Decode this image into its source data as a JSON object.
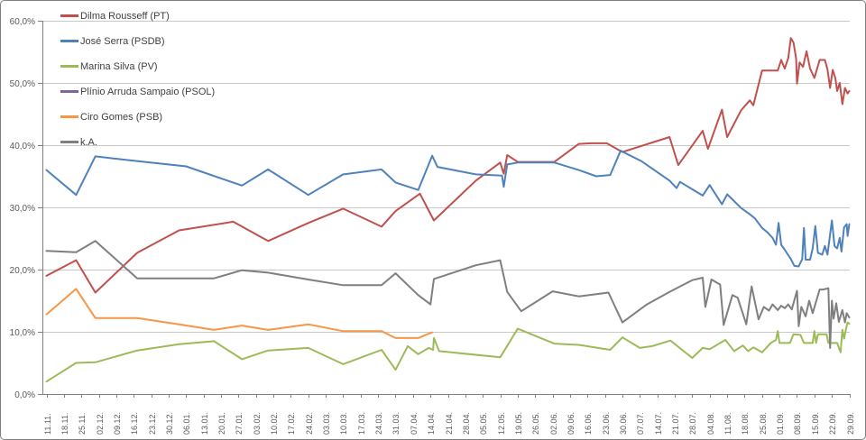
{
  "chart_data": {
    "type": "line",
    "title": "",
    "legend_position": "top-left",
    "grid": true,
    "x_axis": {
      "unit": "weekly date ticks (dd.mm.)",
      "tick_labels": [
        "11.11.",
        "18.11.",
        "25.11.",
        "02.12.",
        "09.12.",
        "16.12.",
        "23.12.",
        "30.12.",
        "06.01.",
        "13.01.",
        "20.01.",
        "27.01.",
        "03.02.",
        "10.02.",
        "17.02.",
        "24.02.",
        "03.03.",
        "10.03.",
        "17.03.",
        "24.03.",
        "31.03.",
        "07.04.",
        "14.04.",
        "21.04.",
        "28.04.",
        "05.05.",
        "12.05.",
        "19.05.",
        "26.05.",
        "02.06.",
        "09.06.",
        "16.06.",
        "23.06.",
        "30.06.",
        "07.07.",
        "14.07.",
        "21.07.",
        "28.07.",
        "04.08.",
        "11.08.",
        "18.08.",
        "25.08.",
        "01.09.",
        "08.09.",
        "15.09.",
        "22.09.",
        "29.09."
      ]
    },
    "y_axis": {
      "min": 0,
      "max": 60,
      "step": 10,
      "tick_labels": [
        "0,0%",
        "10,0%",
        "20,0%",
        "30,0%",
        "40,0%",
        "50,0%",
        "60,0%"
      ]
    },
    "x_scale_note": "series points are [x,y] with x in week units: 0 = tick '11.11.', 46 = tick '29.09.'; y in percent",
    "series": [
      {
        "name": "Dilma Rousseff (PT)",
        "color": "#C0504D",
        "points": [
          [
            0,
            19.0
          ],
          [
            1.7,
            21.5
          ],
          [
            2.8,
            16.3
          ],
          [
            5.2,
            22.7
          ],
          [
            7.6,
            26.3
          ],
          [
            10.7,
            27.7
          ],
          [
            12.7,
            24.6
          ],
          [
            15,
            27.5
          ],
          [
            17,
            29.8
          ],
          [
            19.2,
            26.9
          ],
          [
            20,
            29.4
          ],
          [
            21.4,
            32.2
          ],
          [
            22.2,
            27.9
          ],
          [
            24.6,
            34.3
          ],
          [
            26,
            37.2
          ],
          [
            26.2,
            35.4
          ],
          [
            26.4,
            38.4
          ],
          [
            27,
            37.3
          ],
          [
            29.1,
            37.3
          ],
          [
            30.5,
            40.2
          ],
          [
            31.2,
            40.3
          ],
          [
            32.1,
            40.3
          ],
          [
            33,
            38.9
          ],
          [
            35.7,
            41.3
          ],
          [
            36.2,
            36.8
          ],
          [
            37.6,
            42.3
          ],
          [
            37.9,
            39.4
          ],
          [
            38.7,
            45.7
          ],
          [
            39,
            41.3
          ],
          [
            39.8,
            45.6
          ],
          [
            40.3,
            47.2
          ],
          [
            40.5,
            46.4
          ],
          [
            41,
            52.0
          ],
          [
            41.9,
            52.0
          ],
          [
            42.1,
            53.7
          ],
          [
            42.3,
            52.3
          ],
          [
            42.5,
            54.0
          ],
          [
            42.65,
            57.2
          ],
          [
            42.8,
            56.5
          ],
          [
            42.95,
            54.0
          ],
          [
            43.0,
            49.9
          ],
          [
            43.15,
            53.3
          ],
          [
            43.35,
            52.6
          ],
          [
            43.55,
            55.1
          ],
          [
            43.75,
            52.3
          ],
          [
            44.0,
            50.8
          ],
          [
            44.3,
            53.7
          ],
          [
            44.6,
            53.7
          ],
          [
            44.75,
            52.2
          ],
          [
            44.9,
            49.2
          ],
          [
            45.05,
            52.1
          ],
          [
            45.2,
            50.8
          ],
          [
            45.3,
            48.7
          ],
          [
            45.45,
            50.0
          ],
          [
            45.6,
            46.6
          ],
          [
            45.75,
            49.2
          ],
          [
            45.9,
            48.3
          ],
          [
            46,
            48.7
          ]
        ]
      },
      {
        "name": "José Serra (PSDB)",
        "color": "#4F81BD",
        "points": [
          [
            0,
            36.0
          ],
          [
            1.7,
            32.0
          ],
          [
            2.8,
            38.2
          ],
          [
            5,
            37.5
          ],
          [
            8,
            36.6
          ],
          [
            11.2,
            33.5
          ],
          [
            12.7,
            36.1
          ],
          [
            15,
            32.0
          ],
          [
            17,
            35.3
          ],
          [
            19.2,
            36.1
          ],
          [
            20,
            34.0
          ],
          [
            21.3,
            32.8
          ],
          [
            22.1,
            38.3
          ],
          [
            22.4,
            36.5
          ],
          [
            24.6,
            35.3
          ],
          [
            26.1,
            35.1
          ],
          [
            26.2,
            33.3
          ],
          [
            26.4,
            36.9
          ],
          [
            27,
            37.2
          ],
          [
            29.1,
            37.2
          ],
          [
            30.5,
            36.0
          ],
          [
            31.5,
            35.0
          ],
          [
            32.3,
            35.2
          ],
          [
            32.9,
            39.1
          ],
          [
            34.1,
            37.4
          ],
          [
            35.7,
            34.3
          ],
          [
            36.1,
            33.1
          ],
          [
            36.3,
            34.1
          ],
          [
            37.6,
            31.9
          ],
          [
            38,
            33.6
          ],
          [
            38.7,
            30.5
          ],
          [
            39,
            32.1
          ],
          [
            39.8,
            29.9
          ],
          [
            40.3,
            28.9
          ],
          [
            40.6,
            28.2
          ],
          [
            41,
            26.7
          ],
          [
            41.3,
            26.0
          ],
          [
            41.6,
            25.1
          ],
          [
            41.8,
            24.0
          ],
          [
            41.95,
            27.5
          ],
          [
            42.1,
            24.0
          ],
          [
            42.25,
            23.4
          ],
          [
            42.65,
            21.7
          ],
          [
            42.85,
            20.6
          ],
          [
            43.1,
            20.5
          ],
          [
            43.3,
            21.7
          ],
          [
            43.4,
            26.7
          ],
          [
            43.5,
            21.6
          ],
          [
            43.75,
            21.6
          ],
          [
            43.9,
            23.4
          ],
          [
            44.05,
            27.0
          ],
          [
            44.2,
            22.7
          ],
          [
            44.45,
            22.4
          ],
          [
            44.6,
            23.8
          ],
          [
            44.75,
            22.4
          ],
          [
            45.0,
            27.9
          ],
          [
            45.15,
            23.8
          ],
          [
            45.3,
            23.4
          ],
          [
            45.45,
            25.1
          ],
          [
            45.55,
            22.9
          ],
          [
            45.7,
            26.8
          ],
          [
            45.85,
            27.3
          ],
          [
            45.9,
            25.4
          ],
          [
            46,
            27.3
          ]
        ]
      },
      {
        "name": "Marina Silva (PV)",
        "color": "#9BBB59",
        "points": [
          [
            0,
            2.0
          ],
          [
            1.7,
            5.0
          ],
          [
            2.8,
            5.1
          ],
          [
            5.2,
            7.0
          ],
          [
            7.6,
            8.0
          ],
          [
            9.6,
            8.5
          ],
          [
            11.2,
            5.6
          ],
          [
            12.7,
            7.0
          ],
          [
            15,
            7.4
          ],
          [
            17,
            4.8
          ],
          [
            19.2,
            7.1
          ],
          [
            20,
            3.9
          ],
          [
            20.7,
            7.7
          ],
          [
            21.3,
            6.4
          ],
          [
            21.9,
            7.4
          ],
          [
            22.15,
            7.1
          ],
          [
            22.2,
            9.0
          ],
          [
            22.5,
            6.9
          ],
          [
            26,
            5.9
          ],
          [
            27,
            10.5
          ],
          [
            29.1,
            8.1
          ],
          [
            30.5,
            7.9
          ],
          [
            32.3,
            7.1
          ],
          [
            33,
            9.1
          ],
          [
            34,
            7.4
          ],
          [
            34.7,
            7.7
          ],
          [
            35.75,
            8.6
          ],
          [
            37,
            5.8
          ],
          [
            37.6,
            7.4
          ],
          [
            38,
            7.2
          ],
          [
            38.9,
            8.7
          ],
          [
            39.4,
            6.9
          ],
          [
            39.9,
            7.8
          ],
          [
            40.2,
            6.9
          ],
          [
            40.5,
            7.5
          ],
          [
            41,
            6.7
          ],
          [
            41.5,
            8.2
          ],
          [
            41.8,
            8.7
          ],
          [
            41.9,
            10.1
          ],
          [
            42.0,
            8.2
          ],
          [
            42.6,
            8.2
          ],
          [
            42.8,
            9.6
          ],
          [
            43.2,
            9.5
          ],
          [
            43.4,
            8.2
          ],
          [
            43.9,
            8.2
          ],
          [
            44.0,
            10.1
          ],
          [
            44.1,
            8.2
          ],
          [
            44.2,
            9.6
          ],
          [
            44.7,
            9.6
          ],
          [
            44.8,
            8.2
          ],
          [
            45.3,
            8.2
          ],
          [
            45.5,
            6.7
          ],
          [
            45.6,
            10.3
          ],
          [
            45.7,
            8.9
          ],
          [
            45.8,
            10.3
          ],
          [
            45.9,
            11.5
          ],
          [
            46,
            11.3
          ]
        ]
      },
      {
        "name": "Plínio Arruda Sampaio (PSOL)",
        "color": "#8064A2",
        "points": []
      },
      {
        "name": "Ciro Gomes (PSB)",
        "color": "#F79646",
        "points": [
          [
            0,
            12.8
          ],
          [
            1.7,
            16.9
          ],
          [
            2.8,
            12.2
          ],
          [
            5.2,
            12.2
          ],
          [
            7.6,
            11.2
          ],
          [
            9.6,
            10.3
          ],
          [
            11.2,
            11.0
          ],
          [
            12.7,
            10.3
          ],
          [
            15,
            11.2
          ],
          [
            17,
            10.1
          ],
          [
            19.2,
            10.1
          ],
          [
            20,
            9.0
          ],
          [
            21.3,
            9.0
          ],
          [
            21.8,
            9.6
          ],
          [
            22.1,
            9.9
          ]
        ]
      },
      {
        "name": "k.A.",
        "color": "#7F7F7F",
        "points": [
          [
            0,
            23.0
          ],
          [
            1.7,
            22.8
          ],
          [
            2.8,
            24.6
          ],
          [
            5.2,
            18.6
          ],
          [
            9.6,
            18.6
          ],
          [
            11.2,
            19.9
          ],
          [
            12.7,
            19.5
          ],
          [
            15,
            18.4
          ],
          [
            17,
            17.5
          ],
          [
            19.2,
            17.5
          ],
          [
            20,
            19.4
          ],
          [
            21.3,
            15.9
          ],
          [
            22,
            14.4
          ],
          [
            22.2,
            18.5
          ],
          [
            24.6,
            20.7
          ],
          [
            26,
            21.5
          ],
          [
            26.4,
            16.4
          ],
          [
            27.2,
            13.3
          ],
          [
            29,
            16.5
          ],
          [
            30.5,
            15.7
          ],
          [
            32.2,
            16.3
          ],
          [
            33,
            11.5
          ],
          [
            34.4,
            14.4
          ],
          [
            35.7,
            16.4
          ],
          [
            37,
            18.3
          ],
          [
            37.6,
            18.7
          ],
          [
            37.75,
            14.0
          ],
          [
            38.1,
            18.4
          ],
          [
            38.6,
            17.6
          ],
          [
            38.8,
            11.1
          ],
          [
            39.3,
            15.9
          ],
          [
            39.6,
            15.5
          ],
          [
            40.1,
            11.2
          ],
          [
            40.4,
            17.3
          ],
          [
            40.8,
            12.0
          ],
          [
            41.1,
            14.0
          ],
          [
            41.4,
            13.4
          ],
          [
            41.6,
            14.4
          ],
          [
            41.9,
            13.5
          ],
          [
            42.1,
            14.2
          ],
          [
            42.3,
            13.8
          ],
          [
            42.5,
            14.4
          ],
          [
            42.7,
            13.6
          ],
          [
            43.0,
            16.6
          ],
          [
            43.1,
            10.9
          ],
          [
            43.25,
            14.0
          ],
          [
            43.5,
            12.5
          ],
          [
            43.7,
            15.0
          ],
          [
            43.9,
            13.0
          ],
          [
            44.3,
            16.8
          ],
          [
            44.5,
            16.8
          ],
          [
            44.8,
            17.0
          ],
          [
            44.9,
            7.4
          ],
          [
            45.0,
            15.0
          ],
          [
            45.1,
            12.1
          ],
          [
            45.25,
            14.6
          ],
          [
            45.4,
            11.6
          ],
          [
            45.6,
            13.5
          ],
          [
            45.75,
            11.5
          ],
          [
            45.85,
            13.0
          ],
          [
            46,
            12.3
          ]
        ]
      }
    ]
  },
  "colors": {
    "background": "#FFFFFF",
    "border": "#7F7F7F",
    "axis": "#808080",
    "gridline": "#C8C8C8",
    "tick_label": "#595959",
    "legend_text": "#404040"
  }
}
